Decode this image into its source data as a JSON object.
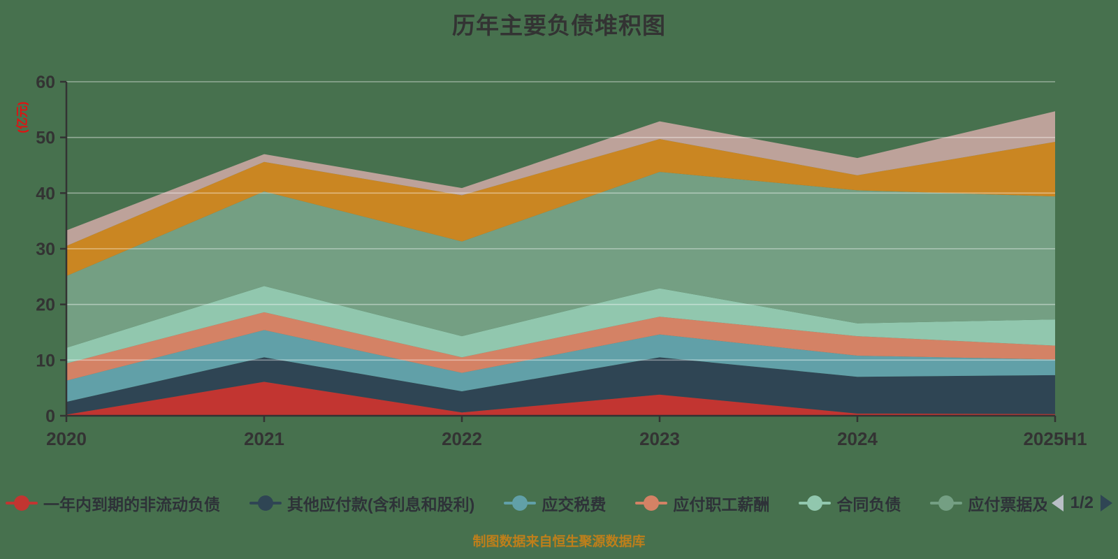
{
  "page": {
    "background_color": "#47714e",
    "title_color": "#333333"
  },
  "chart_data": {
    "type": "area",
    "stacked": true,
    "title": "历年主要负债堆积图",
    "xlabel": "",
    "ylabel": "(亿元)",
    "ylabel_color": "#e01212",
    "ylim": [
      0,
      60
    ],
    "y_ticks": [
      0,
      10,
      20,
      30,
      40,
      50,
      60
    ],
    "grid": true,
    "legend_position": "bottom",
    "categories": [
      "2020",
      "2021",
      "2022",
      "2023",
      "2024",
      "2025H1"
    ],
    "series": [
      {
        "name": "一年内到期的非流动负债",
        "color": "#c23531",
        "in_visible_legend": true,
        "values": [
          0.2,
          6.1,
          0.6,
          3.8,
          0.4,
          0.3
        ]
      },
      {
        "name": "其他应付款(含利息和股利)",
        "color": "#2f4554",
        "in_visible_legend": true,
        "values": [
          2.3,
          4.4,
          3.8,
          6.7,
          6.6,
          7.0
        ]
      },
      {
        "name": "应交税费",
        "color": "#61a0a8",
        "in_visible_legend": true,
        "values": [
          3.8,
          4.9,
          3.3,
          4.1,
          3.8,
          2.8
        ]
      },
      {
        "name": "应付职工薪酬",
        "color": "#d48265",
        "in_visible_legend": true,
        "values": [
          3.1,
          3.2,
          2.8,
          3.2,
          3.5,
          2.5
        ]
      },
      {
        "name": "合同负债",
        "color": "#91c7ae",
        "in_visible_legend": true,
        "values": [
          2.8,
          4.7,
          3.8,
          5.1,
          2.3,
          4.7
        ]
      },
      {
        "name": "应付票据及应",
        "color": "#749f83",
        "in_visible_legend": true,
        "values": [
          12.9,
          17.0,
          17.0,
          20.9,
          23.9,
          22.1
        ]
      },
      {
        "name": "",
        "color": "#ca8622",
        "in_visible_legend": false,
        "values": [
          5.4,
          5.3,
          8.3,
          5.9,
          2.7,
          9.8
        ]
      },
      {
        "name": "",
        "color": "#bda29a",
        "in_visible_legend": false,
        "values": [
          2.8,
          1.4,
          1.3,
          3.2,
          3.1,
          5.5
        ]
      }
    ]
  },
  "axis": {
    "line_color": "#333333",
    "tick_label_color": "#333333",
    "grid_color": "rgba(255,255,255,0.42)"
  },
  "legend": {
    "pager": {
      "label": "1/2",
      "prev_color": "#b9bfc6",
      "next_color": "#2f4554"
    }
  },
  "footer": {
    "source_note": "制图数据来自恒生聚源数据库",
    "color": "#bf7f1a"
  }
}
